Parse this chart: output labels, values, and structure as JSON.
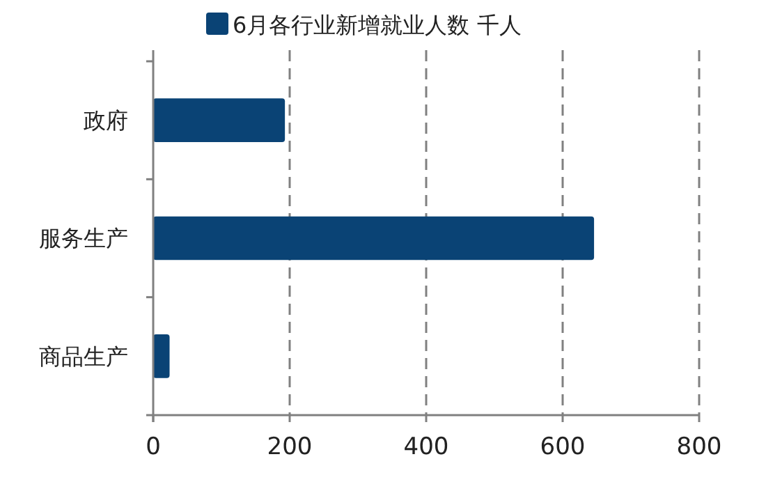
{
  "chart_data": {
    "type": "bar",
    "orientation": "horizontal",
    "categories": [
      "政府",
      "服务生产",
      "商品生产"
    ],
    "series": [
      {
        "name": "6月各行业新增就业人数 千人",
        "color": "#0a4375",
        "values": [
          193,
          646,
          24
        ]
      }
    ],
    "xlim": [
      0,
      800
    ],
    "xticks": [
      0,
      200,
      400,
      600,
      800
    ],
    "grid": "x",
    "legend": "top"
  }
}
